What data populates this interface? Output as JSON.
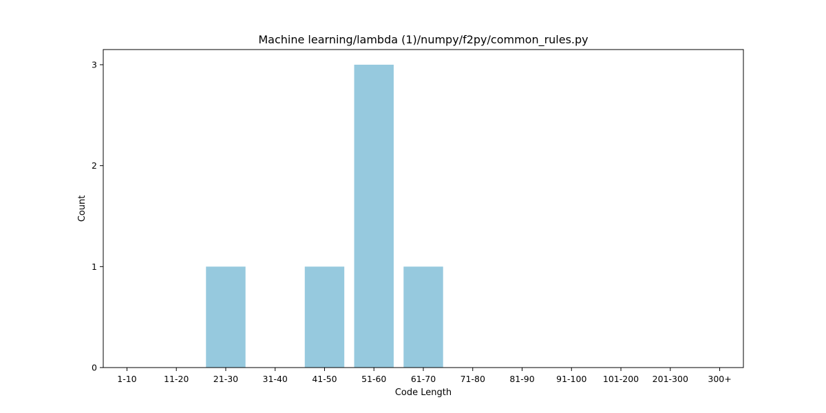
{
  "chart_data": {
    "type": "bar",
    "title": "Machine learning/lambda (1)/numpy/f2py/common_rules.py",
    "xlabel": "Code Length",
    "ylabel": "Count",
    "categories": [
      "1-10",
      "11-20",
      "21-30",
      "31-40",
      "41-50",
      "51-60",
      "61-70",
      "71-80",
      "81-90",
      "91-100",
      "101-200",
      "201-300",
      "300+"
    ],
    "values": [
      0,
      0,
      1,
      0,
      1,
      3,
      1,
      0,
      0,
      0,
      0,
      0,
      0
    ],
    "ylim": [
      0,
      3.15
    ],
    "yticks": [
      0,
      1,
      2,
      3
    ],
    "grid": false,
    "legend": "none",
    "colors": {
      "bar": "#96c9de",
      "axis": "#000000",
      "background": "#ffffff"
    }
  }
}
